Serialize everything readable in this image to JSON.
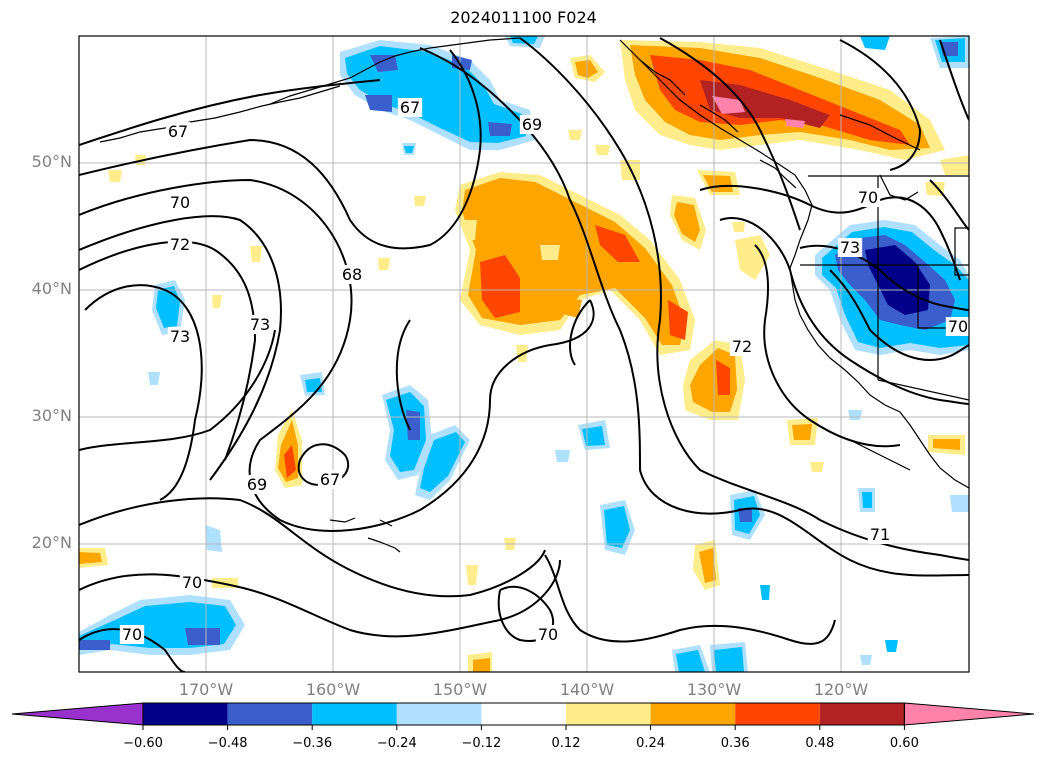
{
  "title": "2024011100 F024",
  "map": {
    "lat_labels": [
      "50°N",
      "40°N",
      "30°N",
      "20°N"
    ],
    "lon_labels": [
      "170°W",
      "160°W",
      "150°W",
      "140°W",
      "130°W",
      "120°W"
    ],
    "contour_labels": [
      "67",
      "67",
      "69",
      "70",
      "72",
      "73",
      "73",
      "68",
      "69",
      "67",
      "70",
      "72",
      "71",
      "70",
      "70",
      "73",
      "70",
      "70"
    ]
  },
  "colorbar": {
    "ticks": [
      "−0.60",
      "−0.48",
      "−0.36",
      "−0.24",
      "−0.12",
      "0.12",
      "0.24",
      "0.36",
      "0.48",
      "0.60"
    ],
    "colors": [
      "#9932cc",
      "#00008b",
      "#3a5fcd",
      "#00bfff",
      "#b0e0ff",
      "#ffffff",
      "#ffec8b",
      "#ffa500",
      "#ff4500",
      "#b22222",
      "#ff82ab"
    ]
  }
}
